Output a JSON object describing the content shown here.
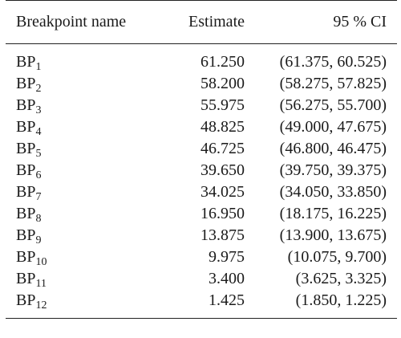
{
  "table": {
    "headers": {
      "name": "Breakpoint name",
      "estimate": "Estimate",
      "ci": "95 % CI"
    },
    "rows": [
      {
        "prefix": "BP",
        "index": "1",
        "estimate": "61.250",
        "ci": "(61.375, 60.525)"
      },
      {
        "prefix": "BP",
        "index": "2",
        "estimate": "58.200",
        "ci": "(58.275, 57.825)"
      },
      {
        "prefix": "BP",
        "index": "3",
        "estimate": "55.975",
        "ci": "(56.275, 55.700)"
      },
      {
        "prefix": "BP",
        "index": "4",
        "estimate": "48.825",
        "ci": "(49.000, 47.675)"
      },
      {
        "prefix": "BP",
        "index": "5",
        "estimate": "46.725",
        "ci": "(46.800, 46.475)"
      },
      {
        "prefix": "BP",
        "index": "6",
        "estimate": "39.650",
        "ci": "(39.750, 39.375)"
      },
      {
        "prefix": "BP",
        "index": "7",
        "estimate": "34.025",
        "ci": "(34.050, 33.850)"
      },
      {
        "prefix": "BP",
        "index": "8",
        "estimate": "16.950",
        "ci": "(18.175, 16.225)"
      },
      {
        "prefix": "BP",
        "index": "9",
        "estimate": "13.875",
        "ci": "(13.900, 13.675)"
      },
      {
        "prefix": "BP",
        "index": "10",
        "estimate": "9.975",
        "ci": "(10.075, 9.700)"
      },
      {
        "prefix": "BP",
        "index": "11",
        "estimate": "3.400",
        "ci": "(3.625, 3.325)"
      },
      {
        "prefix": "BP",
        "index": "12",
        "estimate": "1.425",
        "ci": "(1.850, 1.225)"
      }
    ]
  }
}
